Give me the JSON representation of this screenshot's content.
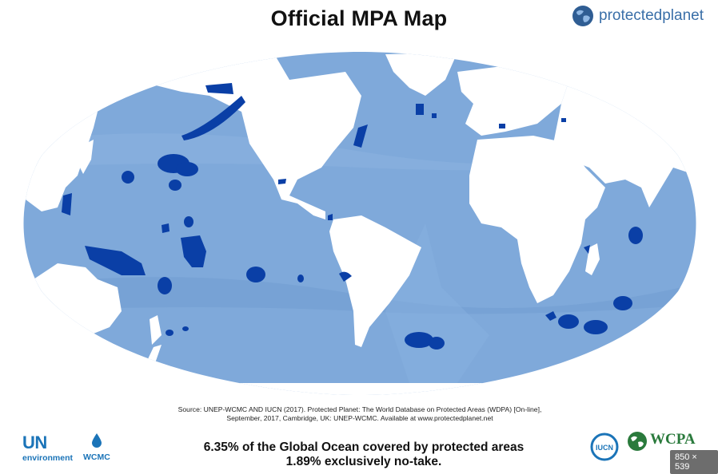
{
  "title": "Official MPA Map",
  "brand_logo": {
    "text": "protectedplanet",
    "icon": "globe-icon"
  },
  "source_line1": "Source: UNEP-WCMC AND IUCN (2017). Protected Planet: The World Database on Protected Areas (WDPA) [On-line],",
  "source_line2": "September, 2017, Cambridge, UK: UNEP-WCMC. Available at www.protectedplanet.net",
  "stat_line1": "6.35% of the Global Ocean covered by protected areas",
  "stat_line2": "1.89% exclusively no-take.",
  "logos": {
    "un": "UN",
    "un_sub": "environment",
    "wcmc": "WCMC",
    "iucn": "IUCN",
    "wcpa": "WCPA"
  },
  "image_size_badge": "850 × 539",
  "colors": {
    "ocean": "#7fa9da",
    "ocean_dark": "#6a96cc",
    "land": "#ffffff",
    "mpa": "#0a3fa6",
    "brand_blue": "#1b74b8",
    "wcpa_green": "#2a7a3c"
  }
}
